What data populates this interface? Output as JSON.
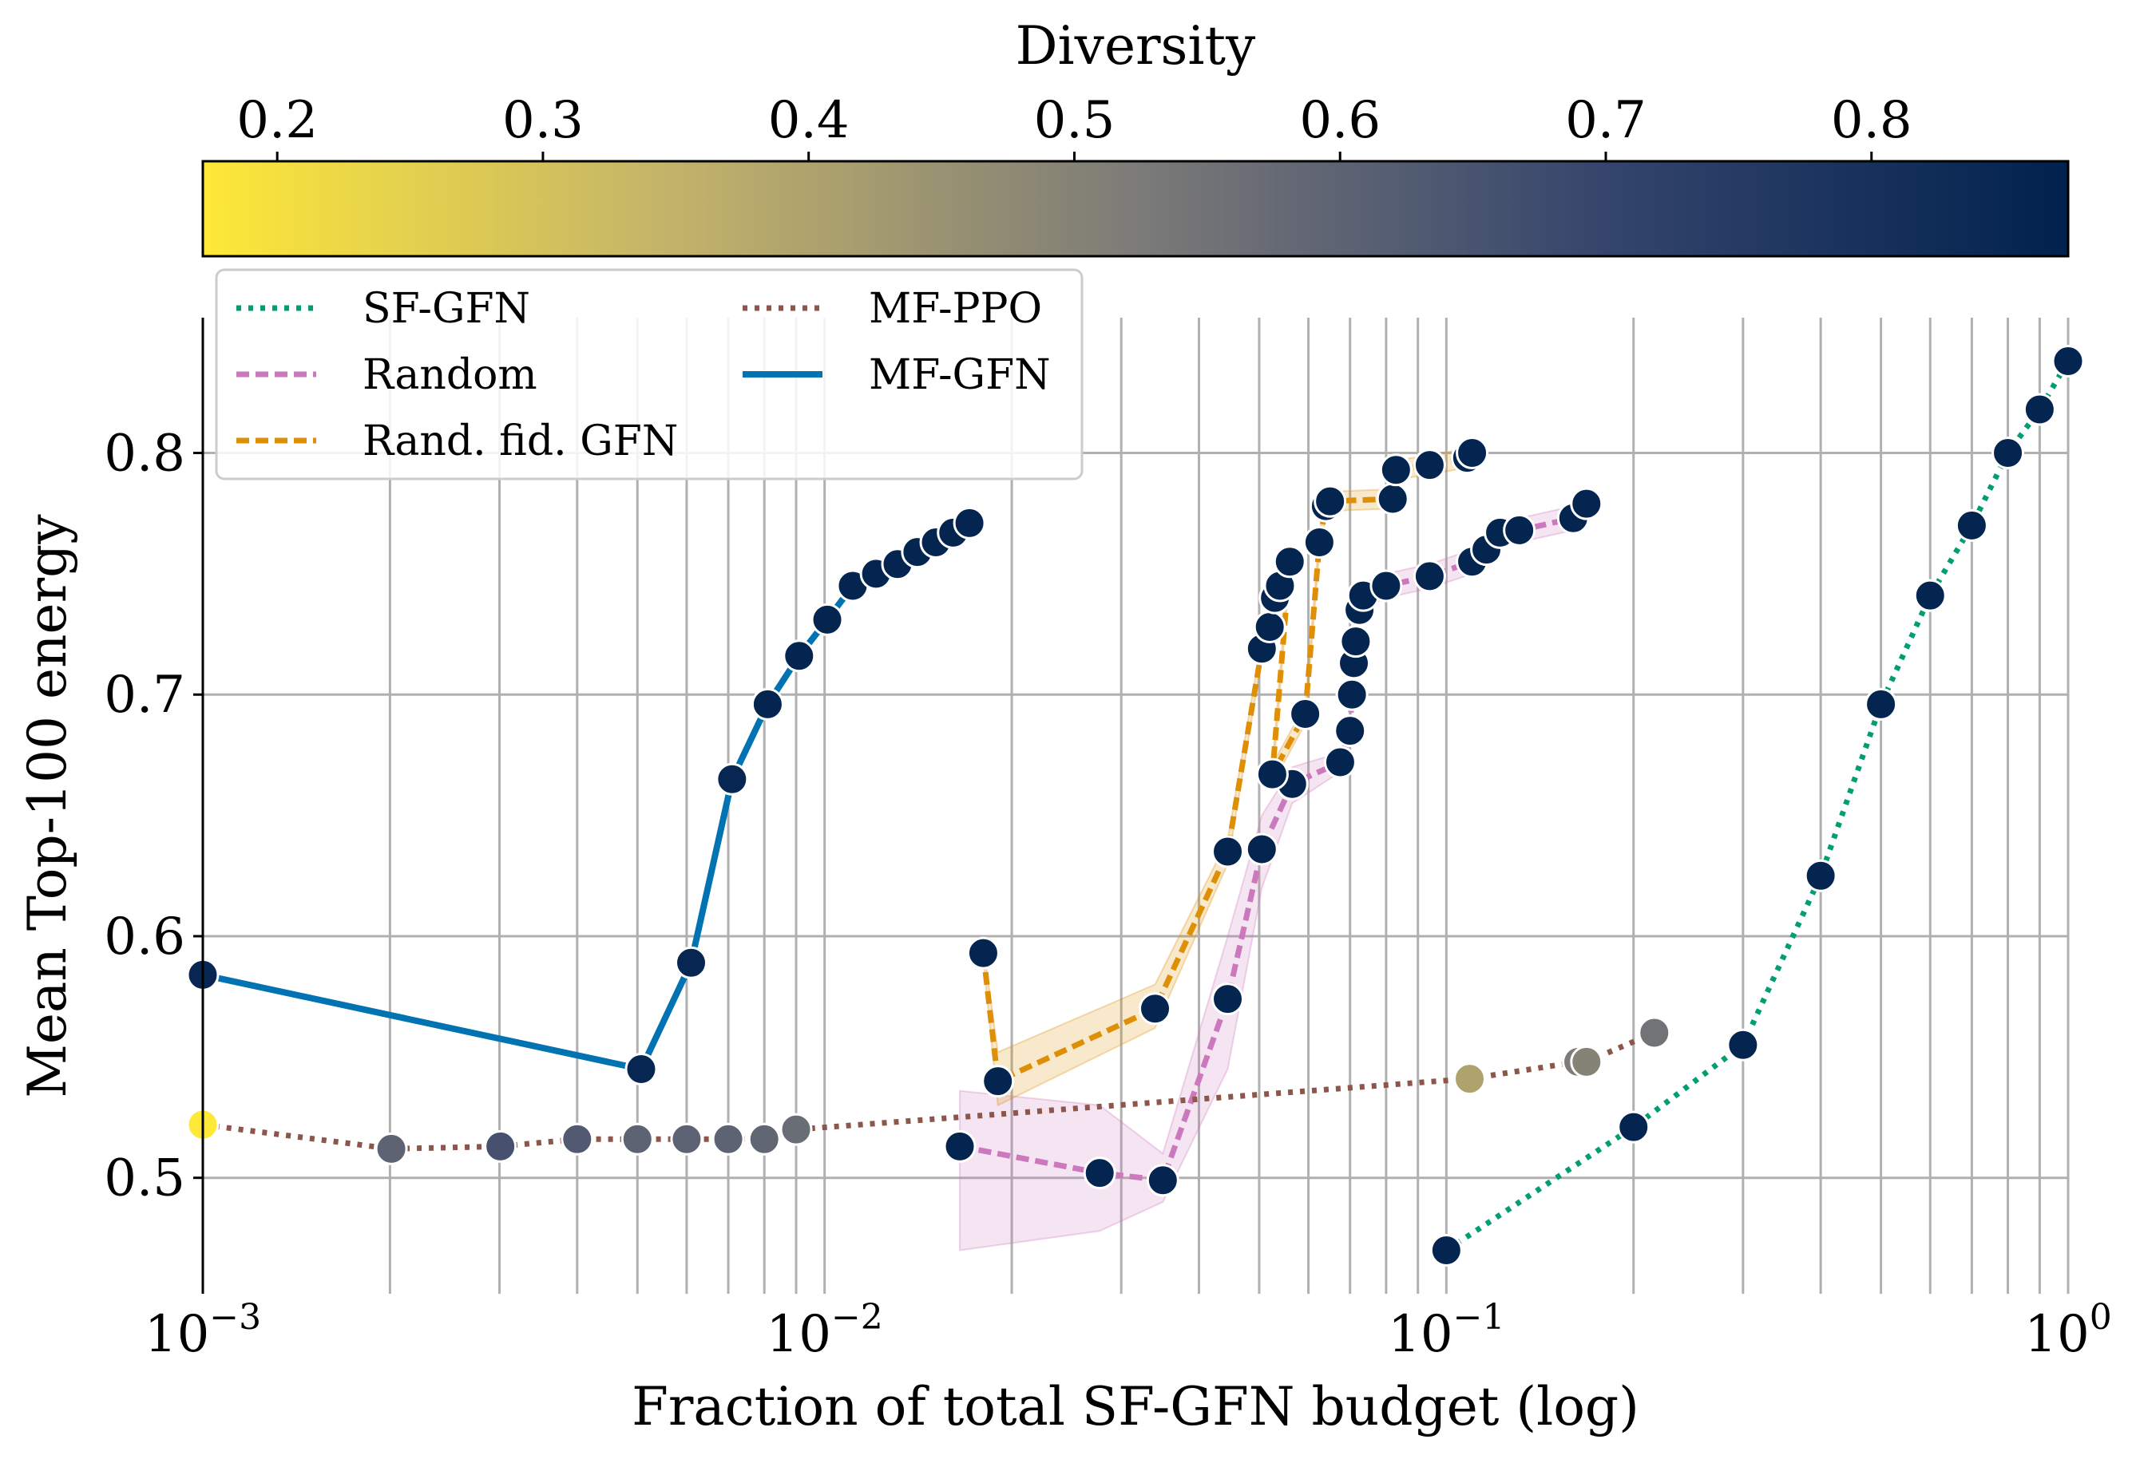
{
  "chart_data": {
    "type": "line",
    "title": "",
    "xlabel": "Fraction of total SF-GFN budget (log)",
    "ylabel": "Mean Top-100 energy",
    "xscale": "log",
    "xlim": [
      0.001,
      1.0
    ],
    "ylim": [
      0.452,
      0.856
    ],
    "grid": true,
    "x_ticks": [
      {
        "base": "10",
        "exp": "−3",
        "value": 0.001
      },
      {
        "base": "10",
        "exp": "−2",
        "value": 0.01
      },
      {
        "base": "10",
        "exp": "−1",
        "value": 0.1
      },
      {
        "base": "10",
        "exp": "0",
        "value": 1
      }
    ],
    "y_ticks": [
      {
        "label": "0.5",
        "value": 0.5
      },
      {
        "label": "0.6",
        "value": 0.6
      },
      {
        "label": "0.7",
        "value": 0.7
      },
      {
        "label": "0.8",
        "value": 0.8
      }
    ],
    "colorbar": {
      "label": "Diversity",
      "colormap": "cividis_r",
      "range": [
        0.172,
        0.874
      ],
      "ticks": [
        "0.2",
        "0.3",
        "0.4",
        "0.5",
        "0.6",
        "0.7",
        "0.8"
      ]
    },
    "legend": {
      "placement": "top-left",
      "columns": 2
    },
    "series": [
      {
        "name": "SF-GFN",
        "color": "#029e73",
        "style": "dotted",
        "x": [
          0.1,
          0.2,
          0.3,
          0.4,
          0.5,
          0.6,
          0.7,
          0.8,
          0.9,
          1.0
        ],
        "y": [
          0.47,
          0.521,
          0.555,
          0.625,
          0.696,
          0.741,
          0.77,
          0.8,
          0.818,
          0.838
        ],
        "diversity": [
          0.86,
          0.86,
          0.86,
          0.86,
          0.86,
          0.86,
          0.86,
          0.86,
          0.86,
          0.86
        ]
      },
      {
        "name": "Random",
        "color": "#cc78bc",
        "style": "dashed",
        "x": [
          0.0165,
          0.0277,
          0.035,
          0.0445,
          0.0505,
          0.0565,
          0.0675,
          0.07,
          0.0705,
          0.071,
          0.0715,
          0.0725,
          0.0735,
          0.08,
          0.094,
          0.11,
          0.116,
          0.122,
          0.131,
          0.16,
          0.168
        ],
        "y": [
          0.513,
          0.502,
          0.499,
          0.574,
          0.636,
          0.663,
          0.672,
          0.685,
          0.7,
          0.713,
          0.722,
          0.735,
          0.741,
          0.745,
          0.749,
          0.755,
          0.76,
          0.767,
          0.768,
          0.773,
          0.779
        ],
        "band_lower": [
          0.47,
          0.478,
          0.49,
          0.545,
          0.62,
          0.655,
          0.668,
          0.68,
          0.695,
          0.708,
          0.717,
          0.73,
          0.736,
          0.74,
          0.744,
          0.75,
          0.755,
          0.762,
          0.763,
          0.768,
          0.774
        ],
        "band_upper": [
          0.536,
          0.53,
          0.51,
          0.6,
          0.65,
          0.67,
          0.676,
          0.69,
          0.705,
          0.718,
          0.727,
          0.74,
          0.746,
          0.75,
          0.754,
          0.76,
          0.765,
          0.772,
          0.773,
          0.778,
          0.784
        ],
        "diversity": [
          0.86,
          0.86,
          0.86,
          0.86,
          0.86,
          0.86,
          0.86,
          0.86,
          0.86,
          0.86,
          0.86,
          0.86,
          0.86,
          0.86,
          0.86,
          0.86,
          0.86,
          0.86,
          0.86,
          0.86,
          0.86
        ]
      },
      {
        "name": "Rand. fid. GFN",
        "color": "#de8f05",
        "style": "dashed",
        "x": [
          0.018,
          0.019,
          0.034,
          0.0445,
          0.0505,
          0.052,
          0.053,
          0.054,
          0.056,
          0.0525,
          0.0593,
          0.0625,
          0.064,
          0.065,
          0.082,
          0.083,
          0.094,
          0.108,
          0.11
        ],
        "y": [
          0.593,
          0.54,
          0.57,
          0.635,
          0.719,
          0.728,
          0.74,
          0.745,
          0.755,
          0.667,
          0.692,
          0.763,
          0.778,
          0.78,
          0.781,
          0.793,
          0.795,
          0.798,
          0.8
        ],
        "band_lower": [
          0.59,
          0.53,
          0.562,
          0.63,
          0.715,
          0.724,
          0.736,
          0.741,
          0.751,
          0.663,
          0.688,
          0.759,
          0.774,
          0.776,
          0.777,
          0.789,
          0.791,
          0.794,
          0.796
        ],
        "band_upper": [
          0.596,
          0.552,
          0.58,
          0.64,
          0.723,
          0.732,
          0.744,
          0.749,
          0.759,
          0.671,
          0.696,
          0.767,
          0.782,
          0.784,
          0.785,
          0.797,
          0.799,
          0.802,
          0.804
        ],
        "diversity": [
          0.86,
          0.86,
          0.86,
          0.86,
          0.86,
          0.86,
          0.86,
          0.86,
          0.86,
          0.86,
          0.86,
          0.86,
          0.86,
          0.86,
          0.86,
          0.86,
          0.86,
          0.86,
          0.86
        ]
      },
      {
        "name": "MF-PPO",
        "color": "#8c564b",
        "style": "dotted",
        "x": [
          0.001,
          0.00201,
          0.00301,
          0.004,
          0.005,
          0.006,
          0.007,
          0.008,
          0.009,
          0.109,
          0.163,
          0.168,
          0.216
        ],
        "y": [
          0.522,
          0.512,
          0.513,
          0.516,
          0.516,
          0.516,
          0.516,
          0.516,
          0.52,
          0.541,
          0.548,
          0.548,
          0.56
        ],
        "diversity": [
          0.17,
          0.6,
          0.66,
          0.63,
          0.6,
          0.6,
          0.6,
          0.59,
          0.57,
          0.4,
          0.52,
          0.5,
          0.55
        ]
      },
      {
        "name": "MF-GFN",
        "color": "#0173b2",
        "style": "solid",
        "x": [
          0.001,
          0.00507,
          0.0061,
          0.0071,
          0.0081,
          0.0091,
          0.0101,
          0.0111,
          0.0121,
          0.0131,
          0.0141,
          0.0151,
          0.0161,
          0.0171
        ],
        "y": [
          0.584,
          0.545,
          0.589,
          0.665,
          0.696,
          0.716,
          0.731,
          0.745,
          0.75,
          0.754,
          0.759,
          0.763,
          0.767,
          0.771
        ],
        "diversity": [
          0.85,
          0.85,
          0.85,
          0.85,
          0.86,
          0.86,
          0.86,
          0.86,
          0.86,
          0.86,
          0.86,
          0.86,
          0.86,
          0.86
        ]
      }
    ]
  }
}
